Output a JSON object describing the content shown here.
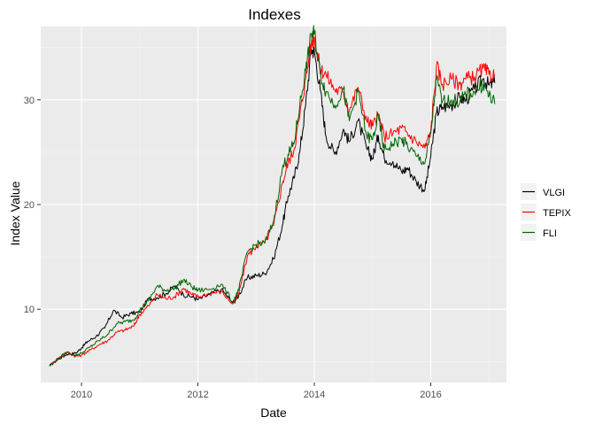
{
  "chart_data": {
    "type": "line",
    "title": "Indexes",
    "xlabel": "Date",
    "ylabel": "Index Value",
    "xlim": [
      2009.3,
      2017.3
    ],
    "ylim": [
      3.0,
      37.0
    ],
    "x_ticks": [
      2010,
      2012,
      2014,
      2016
    ],
    "x_tick_labels": [
      "2010",
      "2012",
      "2014",
      "2016"
    ],
    "y_ticks": [
      10,
      20,
      30
    ],
    "y_tick_labels": [
      "10",
      "20",
      "30"
    ],
    "grid": true,
    "legend_position": "right",
    "series": [
      {
        "name": "VLGI",
        "color": "#000000",
        "x": [
          2009.45,
          2009.6,
          2009.75,
          2009.9,
          2010.0,
          2010.1,
          2010.25,
          2010.4,
          2010.55,
          2010.7,
          2010.85,
          2011.0,
          2011.15,
          2011.3,
          2011.45,
          2011.6,
          2011.75,
          2011.9,
          2012.0,
          2012.2,
          2012.4,
          2012.6,
          2012.7,
          2012.85,
          2013.0,
          2013.15,
          2013.3,
          2013.45,
          2013.55,
          2013.65,
          2013.75,
          2013.85,
          2013.95,
          2014.0,
          2014.1,
          2014.2,
          2014.35,
          2014.5,
          2014.6,
          2014.75,
          2014.9,
          2015.0,
          2015.1,
          2015.2,
          2015.35,
          2015.5,
          2015.6,
          2015.75,
          2015.9,
          2016.0,
          2016.1,
          2016.2,
          2016.35,
          2016.5,
          2016.6,
          2016.75,
          2016.9,
          2017.0,
          2017.1
        ],
        "y": [
          4.6,
          5.2,
          5.7,
          5.8,
          6.3,
          6.9,
          7.4,
          8.2,
          9.9,
          9.2,
          9.6,
          9.7,
          11.0,
          11.1,
          11.5,
          12.2,
          11.4,
          11.2,
          10.9,
          11.4,
          11.9,
          10.6,
          11.3,
          13.0,
          13.2,
          13.4,
          14.8,
          18.0,
          20.8,
          22.5,
          25.0,
          29.5,
          34.8,
          34.6,
          31.0,
          26.5,
          24.8,
          27.2,
          26.0,
          28.0,
          25.3,
          24.4,
          26.6,
          24.5,
          24.1,
          23.1,
          23.5,
          22.2,
          21.4,
          24.6,
          28.8,
          29.3,
          29.5,
          30.2,
          30.0,
          31.0,
          32.0,
          31.4,
          31.6
        ]
      },
      {
        "name": "TEPIX",
        "color": "#ff0000",
        "x": [
          2009.45,
          2009.6,
          2009.75,
          2009.9,
          2010.0,
          2010.15,
          2010.3,
          2010.45,
          2010.6,
          2010.75,
          2010.9,
          2011.0,
          2011.15,
          2011.3,
          2011.45,
          2011.6,
          2011.75,
          2011.9,
          2012.0,
          2012.2,
          2012.4,
          2012.6,
          2012.7,
          2012.85,
          2013.0,
          2013.15,
          2013.3,
          2013.45,
          2013.55,
          2013.65,
          2013.75,
          2013.85,
          2013.95,
          2014.0,
          2014.1,
          2014.2,
          2014.35,
          2014.5,
          2014.6,
          2014.75,
          2014.9,
          2015.0,
          2015.1,
          2015.2,
          2015.35,
          2015.5,
          2015.6,
          2015.75,
          2015.9,
          2016.0,
          2016.1,
          2016.2,
          2016.35,
          2016.5,
          2016.6,
          2016.75,
          2016.9,
          2017.0,
          2017.1
        ],
        "y": [
          4.6,
          5.3,
          5.9,
          5.5,
          5.6,
          6.1,
          6.6,
          7.0,
          7.8,
          8.0,
          8.4,
          9.5,
          10.3,
          11.4,
          11.0,
          11.2,
          12.0,
          11.4,
          11.2,
          11.5,
          11.7,
          10.5,
          11.4,
          15.1,
          16.0,
          16.4,
          18.0,
          22.0,
          24.0,
          25.2,
          28.5,
          32.0,
          35.4,
          36.0,
          33.0,
          32.4,
          31.0,
          30.7,
          29.0,
          31.2,
          28.0,
          27.5,
          28.5,
          26.5,
          26.8,
          27.3,
          26.8,
          26.0,
          25.4,
          27.0,
          33.3,
          31.5,
          32.0,
          31.5,
          32.0,
          32.2,
          33.0,
          32.4,
          32.4
        ]
      },
      {
        "name": "FLI",
        "color": "#006400",
        "x": [
          2009.45,
          2009.6,
          2009.75,
          2009.9,
          2010.0,
          2010.15,
          2010.3,
          2010.45,
          2010.6,
          2010.75,
          2010.9,
          2011.0,
          2011.15,
          2011.3,
          2011.45,
          2011.6,
          2011.75,
          2011.9,
          2012.0,
          2012.2,
          2012.4,
          2012.6,
          2012.7,
          2012.85,
          2013.0,
          2013.15,
          2013.3,
          2013.45,
          2013.55,
          2013.65,
          2013.75,
          2013.85,
          2013.95,
          2014.0,
          2014.1,
          2014.2,
          2014.35,
          2014.5,
          2014.6,
          2014.75,
          2014.9,
          2015.0,
          2015.1,
          2015.2,
          2015.35,
          2015.5,
          2015.6,
          2015.75,
          2015.9,
          2016.0,
          2016.1,
          2016.2,
          2016.35,
          2016.5,
          2016.6,
          2016.75,
          2016.9,
          2017.0,
          2017.1
        ],
        "y": [
          4.6,
          5.3,
          5.9,
          5.6,
          5.8,
          6.4,
          7.0,
          7.6,
          8.6,
          8.8,
          9.0,
          9.9,
          10.8,
          12.2,
          11.8,
          12.0,
          12.8,
          12.1,
          11.8,
          11.9,
          12.4,
          10.7,
          11.8,
          15.5,
          16.2,
          16.3,
          18.4,
          23.4,
          24.8,
          25.8,
          29.5,
          32.8,
          36.3,
          36.4,
          32.5,
          30.8,
          29.5,
          31.0,
          28.0,
          30.8,
          26.5,
          26.2,
          28.4,
          25.2,
          25.8,
          26.2,
          25.6,
          24.6,
          24.0,
          26.8,
          32.0,
          29.8,
          30.0,
          29.8,
          30.5,
          30.8,
          31.5,
          30.4,
          29.6
        ]
      }
    ]
  }
}
